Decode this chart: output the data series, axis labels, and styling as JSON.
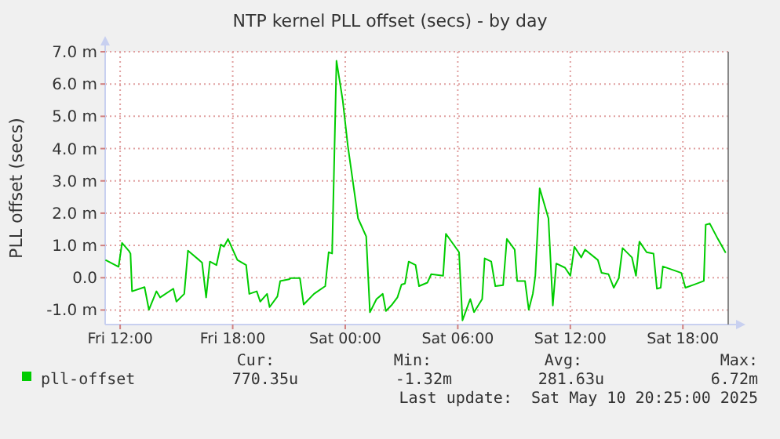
{
  "chart_data": {
    "type": "line",
    "title": "NTP kernel PLL offset (secs) - by day",
    "ylabel": "PLL offset (secs)",
    "x": [
      "2025-05-09T11:13",
      "2025-05-09T11:55",
      "2025-05-09T12:06",
      "2025-05-09T12:28",
      "2025-05-09T12:33",
      "2025-05-09T12:38",
      "2025-05-09T13:18",
      "2025-05-09T13:32",
      "2025-05-09T13:56",
      "2025-05-09T14:08",
      "2025-05-09T14:50",
      "2025-05-09T15:00",
      "2025-05-09T15:25",
      "2025-05-09T15:37",
      "2025-05-09T16:22",
      "2025-05-09T16:35",
      "2025-05-09T16:47",
      "2025-05-09T17:08",
      "2025-05-09T17:22",
      "2025-05-09T17:32",
      "2025-05-09T17:45",
      "2025-05-09T18:15",
      "2025-05-09T18:43",
      "2025-05-09T18:53",
      "2025-05-09T19:17",
      "2025-05-09T19:28",
      "2025-05-09T19:50",
      "2025-05-09T19:58",
      "2025-05-09T20:23",
      "2025-05-09T20:32",
      "2025-05-09T21:00",
      "2025-05-09T21:07",
      "2025-05-09T21:35",
      "2025-05-09T21:47",
      "2025-05-09T22:20",
      "2025-05-09T22:56",
      "2025-05-09T23:07",
      "2025-05-09T23:18",
      "2025-05-09T23:32",
      "2025-05-09T23:52",
      "2025-05-10T00:08",
      "2025-05-10T00:41",
      "2025-05-10T01:07",
      "2025-05-10T01:19",
      "2025-05-10T01:40",
      "2025-05-10T02:00",
      "2025-05-10T02:10",
      "2025-05-10T02:30",
      "2025-05-10T02:47",
      "2025-05-10T03:00",
      "2025-05-10T03:11",
      "2025-05-10T03:23",
      "2025-05-10T03:45",
      "2025-05-10T03:56",
      "2025-05-10T04:23",
      "2025-05-10T04:35",
      "2025-05-10T05:13",
      "2025-05-10T05:22",
      "2025-05-10T06:04",
      "2025-05-10T06:15",
      "2025-05-10T06:40",
      "2025-05-10T06:52",
      "2025-05-10T07:18",
      "2025-05-10T07:26",
      "2025-05-10T07:47",
      "2025-05-10T08:00",
      "2025-05-10T08:25",
      "2025-05-10T08:37",
      "2025-05-10T09:02",
      "2025-05-10T09:10",
      "2025-05-10T09:35",
      "2025-05-10T09:47",
      "2025-05-10T10:00",
      "2025-05-10T10:08",
      "2025-05-10T10:22",
      "2025-05-10T10:50",
      "2025-05-10T11:04",
      "2025-05-10T11:15",
      "2025-05-10T11:43",
      "2025-05-10T12:00",
      "2025-05-10T12:13",
      "2025-05-10T12:35",
      "2025-05-10T12:47",
      "2025-05-10T13:28",
      "2025-05-10T13:40",
      "2025-05-10T14:02",
      "2025-05-10T14:19",
      "2025-05-10T14:35",
      "2025-05-10T14:47",
      "2025-05-10T15:17",
      "2025-05-10T15:30",
      "2025-05-10T15:41",
      "2025-05-10T16:04",
      "2025-05-10T16:26",
      "2025-05-10T16:37",
      "2025-05-10T16:49",
      "2025-05-10T16:56",
      "2025-05-10T17:55",
      "2025-05-10T18:08",
      "2025-05-10T18:37",
      "2025-05-10T19:07",
      "2025-05-10T19:13",
      "2025-05-10T19:26",
      "2025-05-10T19:52",
      "2025-05-10T20:17"
    ],
    "series": [
      {
        "name": "pll-offset",
        "color": "#00cc00",
        "values": [
          0.55,
          0.34,
          1.08,
          0.83,
          0.75,
          -0.42,
          -0.29,
          -0.99,
          -0.42,
          -0.61,
          -0.34,
          -0.74,
          -0.5,
          0.84,
          0.47,
          -0.61,
          0.5,
          0.39,
          1.03,
          0.96,
          1.2,
          0.55,
          0.39,
          -0.5,
          -0.42,
          -0.74,
          -0.5,
          -0.91,
          -0.58,
          -0.1,
          -0.05,
          -0.01,
          -0.01,
          -0.83,
          -0.5,
          -0.26,
          0.79,
          0.75,
          6.72,
          5.49,
          4.11,
          1.84,
          1.28,
          -1.07,
          -0.66,
          -0.5,
          -1.03,
          -0.83,
          -0.61,
          -0.21,
          -0.18,
          0.5,
          0.39,
          -0.26,
          -0.15,
          0.11,
          0.06,
          1.36,
          0.79,
          -1.32,
          -0.66,
          -1.07,
          -0.66,
          0.6,
          0.5,
          -0.26,
          -0.23,
          1.2,
          0.87,
          -0.1,
          -0.1,
          -0.99,
          -0.5,
          0.06,
          2.77,
          1.84,
          -0.86,
          0.44,
          0.31,
          0.06,
          0.96,
          0.63,
          0.87,
          0.55,
          0.15,
          0.11,
          -0.31,
          -0.01,
          0.92,
          0.63,
          0.06,
          1.12,
          0.79,
          0.75,
          -0.34,
          -0.31,
          0.35,
          0.15,
          -0.31,
          -0.21,
          -0.1,
          1.64,
          1.68,
          1.2,
          0.77
        ]
      }
    ],
    "xlim": [
      "2025-05-09T11:12",
      "2025-05-10T20:25"
    ],
    "xticks": [
      {
        "value": "2025-05-09T12:00",
        "label": "Fri 12:00"
      },
      {
        "value": "2025-05-09T18:00",
        "label": "Fri 18:00"
      },
      {
        "value": "2025-05-10T00:00",
        "label": "Sat 00:00"
      },
      {
        "value": "2025-05-10T06:00",
        "label": "Sat 06:00"
      },
      {
        "value": "2025-05-10T12:00",
        "label": "Sat 12:00"
      },
      {
        "value": "2025-05-10T18:00",
        "label": "Sat 18:00"
      }
    ],
    "ylim": [
      -1.45,
      7.0
    ],
    "yticks": [
      {
        "value": -1,
        "label": "-1.0 m"
      },
      {
        "value": 0,
        "label": "0.0"
      },
      {
        "value": 1,
        "label": "1.0 m"
      },
      {
        "value": 2,
        "label": "2.0 m"
      },
      {
        "value": 3,
        "label": "3.0 m"
      },
      {
        "value": 4,
        "label": "4.0 m"
      },
      {
        "value": 5,
        "label": "5.0 m"
      },
      {
        "value": 6,
        "label": "6.0 m"
      },
      {
        "value": 7,
        "label": "7.0 m"
      }
    ],
    "grid": true,
    "legend": "bottom left",
    "marker": "none",
    "line_style": "solid",
    "annotations": [
      "Cur:",
      "Min:",
      "Avg:",
      "Max:",
      "770.35u",
      "-1.32m",
      "281.63u",
      "6.72m",
      "Last update:  Sat May 10 20:25:00 2025"
    ]
  }
}
